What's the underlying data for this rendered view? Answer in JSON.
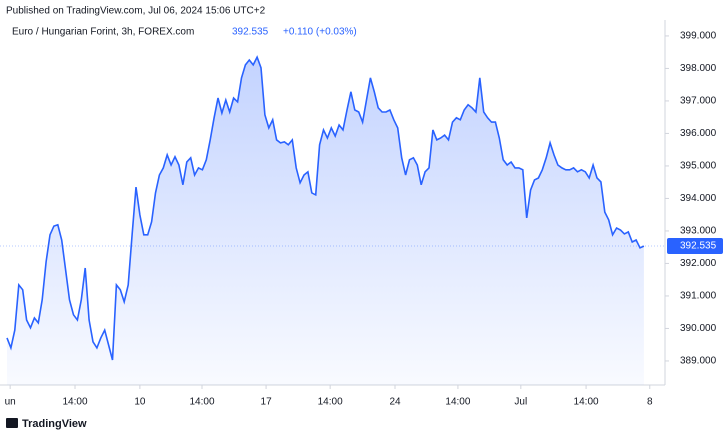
{
  "chart_data": {
    "type": "area",
    "header": "Published on TradingView.com, Jul 06, 2024 15:06 UTC+2",
    "title": "Euro / Hungarian Forint, 3h, FOREX.com",
    "last_price": 392.535,
    "change": "+0.110 (+0.03%)",
    "footer": "TradingView",
    "color": "#2962ff",
    "values": [
      389.71,
      389.4,
      389.95,
      391.34,
      391.19,
      390.26,
      390.02,
      390.32,
      390.17,
      390.88,
      392.05,
      392.88,
      393.15,
      393.19,
      392.72,
      391.8,
      390.88,
      390.42,
      390.26,
      390.88,
      391.86,
      390.26,
      389.59,
      389.4,
      389.71,
      389.95,
      389.49,
      389.03,
      391.34,
      391.19,
      390.82,
      391.34,
      392.88,
      394.35,
      393.49,
      392.88,
      392.88,
      393.28,
      394.17,
      394.72,
      394.94,
      395.34,
      395.03,
      395.28,
      395.03,
      394.42,
      395.12,
      395.25,
      394.72,
      394.94,
      394.88,
      395.19,
      395.8,
      396.48,
      397.09,
      396.63,
      397.03,
      396.66,
      397.09,
      396.97,
      397.71,
      398.11,
      398.26,
      398.11,
      398.35,
      398.02,
      396.57,
      396.17,
      396.42,
      395.8,
      395.71,
      395.74,
      395.65,
      395.8,
      394.94,
      394.48,
      394.72,
      394.82,
      394.17,
      394.11,
      395.65,
      396.11,
      395.86,
      396.17,
      395.92,
      396.26,
      396.11,
      396.72,
      397.28,
      396.72,
      396.66,
      396.35,
      397.03,
      397.71,
      397.28,
      396.79,
      396.66,
      396.66,
      396.72,
      396.42,
      396.17,
      395.25,
      394.72,
      395.19,
      395.25,
      395.03,
      394.42,
      394.82,
      394.94,
      396.11,
      395.8,
      395.86,
      395.95,
      395.8,
      396.35,
      396.48,
      396.42,
      396.72,
      396.88,
      396.79,
      396.66,
      397.71,
      396.66,
      396.48,
      396.35,
      396.35,
      395.86,
      395.19,
      395.03,
      395.12,
      394.94,
      394.94,
      394.88,
      393.4,
      394.26,
      394.57,
      394.63,
      394.88,
      395.25,
      395.71,
      395.34,
      395.03,
      394.94,
      394.88,
      394.88,
      394.94,
      394.82,
      394.88,
      394.82,
      394.63,
      395.03,
      394.63,
      394.51,
      393.58,
      393.34,
      392.88,
      393.09,
      393.03,
      392.91,
      392.97,
      392.66,
      392.72,
      392.48,
      392.535
    ],
    "xlim": [
      -1.8,
      168.4
    ],
    "xticks": [
      {
        "value": 0.8,
        "label": "un"
      },
      {
        "value": 17.4,
        "label": "14:00"
      },
      {
        "value": 34.0,
        "label": "10"
      },
      {
        "value": 49.9,
        "label": "14:00"
      },
      {
        "value": 66.3,
        "label": "17"
      },
      {
        "value": 82.7,
        "label": "14:00"
      },
      {
        "value": 99.3,
        "label": "24"
      },
      {
        "value": 115.4,
        "label": "14:00"
      },
      {
        "value": 131.5,
        "label": "Jul"
      },
      {
        "value": 148.2,
        "label": "14:00"
      },
      {
        "value": 164.5,
        "label": "8"
      }
    ],
    "ylim": [
      388.26,
      399.49
    ],
    "yticks": [
      {
        "value": 389,
        "label": "389.000"
      },
      {
        "value": 390,
        "label": "390.000"
      },
      {
        "value": 391,
        "label": "391.000"
      },
      {
        "value": 392,
        "label": "392.000"
      },
      {
        "value": 393,
        "label": "393.000"
      },
      {
        "value": 394,
        "label": "394.000"
      },
      {
        "value": 395,
        "label": "395.000"
      },
      {
        "value": 396,
        "label": "396.000"
      },
      {
        "value": 397,
        "label": "397.000"
      },
      {
        "value": 398,
        "label": "398.000"
      },
      {
        "value": 399,
        "label": "399.000"
      }
    ]
  }
}
